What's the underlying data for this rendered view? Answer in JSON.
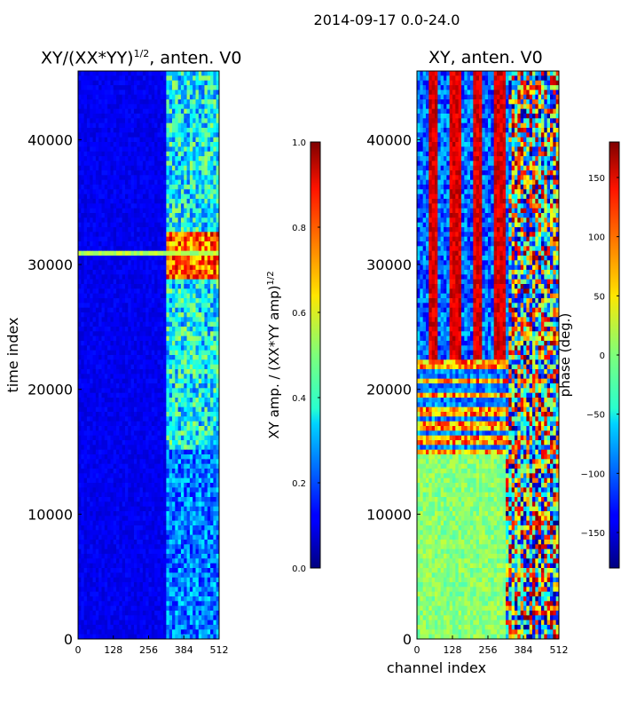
{
  "suptitle": "2014-09-17 0.0-24.0",
  "chart_data": [
    {
      "type": "heatmap",
      "title": {
        "prefix": "XY/(XX*YY)",
        "sup": "1/2",
        "suffix": ", anten. V0"
      },
      "xlabel": "",
      "ylabel": "time index",
      "xlim": [
        0,
        512
      ],
      "ylim": [
        0,
        45500
      ],
      "xticks": [
        0,
        128,
        256,
        384,
        512
      ],
      "yticks": [
        0,
        10000,
        20000,
        30000,
        40000
      ],
      "colorbar": {
        "label": "XY amp. / (XX*YY amp)^1/2",
        "label_main": "XY amp. / (XX*YY amp)",
        "label_sup": "1/2",
        "range": [
          0.0,
          1.0
        ],
        "ticks": [
          0.0,
          0.2,
          0.4,
          0.6,
          0.8,
          1.0
        ]
      },
      "colormap": "jet",
      "description_bands": [
        {
          "y_range": [
            30700,
            31100
          ],
          "level": 0.55
        },
        {
          "y_range": [
            29000,
            32500
          ],
          "x_range": [
            320,
            480
          ],
          "level": 0.9
        }
      ]
    },
    {
      "type": "heatmap",
      "title": {
        "prefix": "XY, anten. V0",
        "sup": "",
        "suffix": ""
      },
      "xlabel": "channel index",
      "ylabel": "",
      "xlim": [
        0,
        512
      ],
      "ylim": [
        0,
        45500
      ],
      "xticks": [
        0,
        128,
        256,
        384,
        512
      ],
      "yticks": [
        0,
        10000,
        20000,
        30000,
        40000
      ],
      "colorbar": {
        "label": "phase (deg.)",
        "label_main": "phase (deg.)",
        "label_sup": "",
        "range": [
          -180,
          180
        ],
        "ticks": [
          -150,
          -100,
          -50,
          0,
          50,
          100,
          150
        ]
      },
      "colormap": "jet",
      "description_bands": [
        {
          "y_range": [
            0,
            14800
          ],
          "level": 0.5
        },
        {
          "y_range": [
            14800,
            22500
          ],
          "level": 0.3
        },
        {
          "y_range": [
            22500,
            45500
          ],
          "level": 0.8
        }
      ]
    }
  ]
}
